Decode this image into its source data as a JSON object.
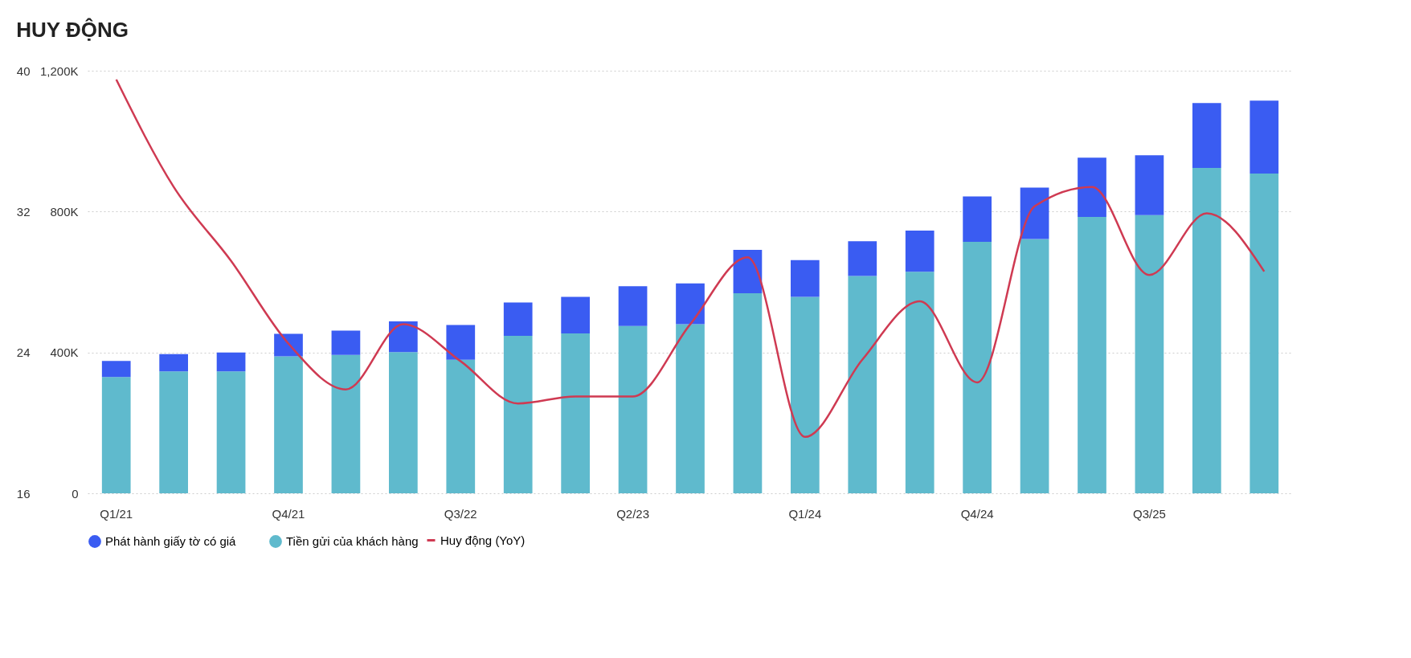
{
  "chart_data": {
    "type": "bar",
    "title": "HUY ĐỘNG",
    "stacked": true,
    "grid": "y",
    "legend": "bottom",
    "categories": [
      "Q1/21",
      null,
      null,
      "Q4/21",
      null,
      null,
      "Q3/22",
      null,
      null,
      "Q2/23",
      null,
      null,
      "Q1/24",
      null,
      null,
      "Q4/24",
      null,
      null,
      "Q3/25",
      null,
      null
    ],
    "series": [
      {
        "name": "Tiền gửi của khách hàng",
        "color": "#5fbacd",
        "values": [
          330,
          346,
          346,
          389,
          393,
          401,
          379,
          447,
          454,
          475,
          480,
          568,
          558,
          617,
          629,
          714,
          722,
          785,
          790,
          924,
          908
        ]
      },
      {
        "name": "Phát hành giấy tờ có giá",
        "color": "#3a5cf2",
        "values": [
          46,
          49,
          54,
          64,
          69,
          87,
          99,
          95,
          104,
          113,
          116,
          123,
          104,
          99,
          117,
          129,
          146,
          168,
          170,
          184,
          207
        ]
      },
      {
        "name": "Huy động (YoY)",
        "type": "line",
        "axis": "y2",
        "color": "#cf3a52",
        "marker": "none",
        "line_style": "solid",
        "values": [
          39.5,
          33.4,
          29.2,
          24.5,
          21.9,
          25.6,
          23.5,
          21.1,
          21.5,
          21.5,
          25.6,
          29.4,
          19.2,
          23.6,
          26.9,
          22.3,
          32.3,
          33.4,
          28.4,
          31.9,
          28.6
        ]
      }
    ],
    "ylim": [
      0,
      1200
    ],
    "yticks": [
      {
        "value": 0,
        "label": "0"
      },
      {
        "value": 400,
        "label": "400K"
      },
      {
        "value": 800,
        "label": "800K"
      },
      {
        "value": 1200,
        "label": "1,200K"
      }
    ],
    "y2lim": [
      16,
      40
    ],
    "y2ticks": [
      16,
      24,
      32,
      40
    ]
  }
}
